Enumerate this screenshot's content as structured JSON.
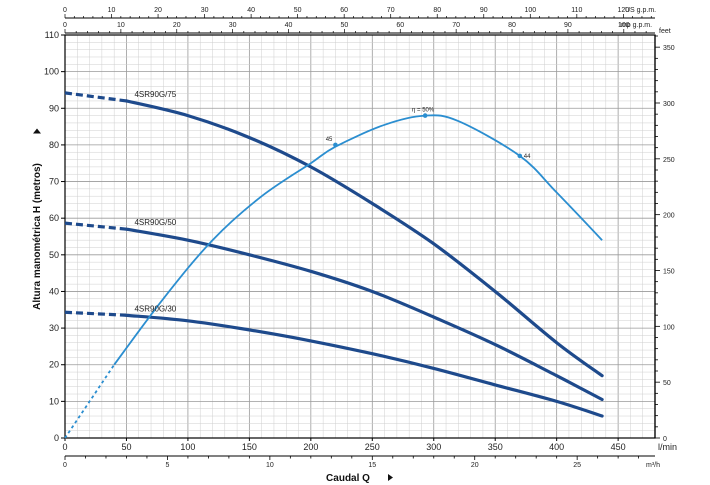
{
  "chart_data": {
    "type": "line",
    "ylabel": "Altura manométrica H (metros)",
    "xlabel": "Caudal  Q",
    "x_unit": "l/min",
    "x_unit_m3h": "m³/h",
    "x_unit_us": "US g.p.m.",
    "x_unit_imp": "Imp g.p.m.",
    "y_unit_feet": "feet",
    "xlim": [
      0,
      480
    ],
    "ylim": [
      0,
      110
    ],
    "x_ticks": [
      0,
      50,
      100,
      150,
      200,
      250,
      300,
      350,
      400,
      450
    ],
    "y_ticks": [
      0,
      10,
      20,
      30,
      40,
      50,
      60,
      70,
      80,
      90,
      100,
      110
    ],
    "feet_ticks": [
      0,
      50,
      100,
      150,
      200,
      250,
      300,
      350
    ],
    "m3h_ticks": [
      0,
      5,
      10,
      15,
      20,
      25
    ],
    "us_ticks": [
      0,
      10,
      20,
      30,
      40,
      50,
      60,
      70,
      80,
      90,
      100,
      110,
      120
    ],
    "imp_ticks": [
      0,
      10,
      20,
      30,
      40,
      50,
      60,
      70,
      80,
      90,
      100
    ],
    "grid": true,
    "series": [
      {
        "name": "4SR90G/75",
        "dashed_x": [
          0,
          50
        ],
        "x": [
          50,
          100,
          150,
          200,
          250,
          300,
          350,
          400,
          437
        ],
        "values": [
          92,
          88,
          82,
          74,
          64,
          53,
          40,
          26,
          17
        ]
      },
      {
        "name": "4SR90G/50",
        "dashed_x": [
          0,
          50
        ],
        "x": [
          50,
          100,
          150,
          200,
          250,
          300,
          350,
          400,
          437
        ],
        "values": [
          57,
          54,
          50,
          45.5,
          40,
          33,
          25.5,
          17,
          10.5
        ]
      },
      {
        "name": "4SR90G/30",
        "dashed_x": [
          0,
          50
        ],
        "x": [
          50,
          100,
          150,
          200,
          250,
          300,
          350,
          400,
          437
        ],
        "values": [
          33.5,
          32,
          29.5,
          26.5,
          23,
          19,
          14.5,
          10,
          6
        ]
      },
      {
        "name": "η = 50%",
        "dashed_x": [
          0,
          40
        ],
        "x": [
          0,
          20,
          40,
          80,
          120,
          160,
          200,
          220,
          260,
          293,
          320,
          370,
          400,
          437
        ],
        "values": [
          0,
          10,
          20,
          38,
          54,
          66,
          75,
          79.5,
          85.5,
          88,
          86.5,
          77,
          67,
          54
        ]
      }
    ],
    "annotations": [
      {
        "text": "45",
        "x": 220,
        "y": 80
      },
      {
        "text": "η = 50%",
        "x": 293,
        "y": 88
      },
      {
        "text": "44",
        "x": 370,
        "y": 77
      }
    ]
  }
}
